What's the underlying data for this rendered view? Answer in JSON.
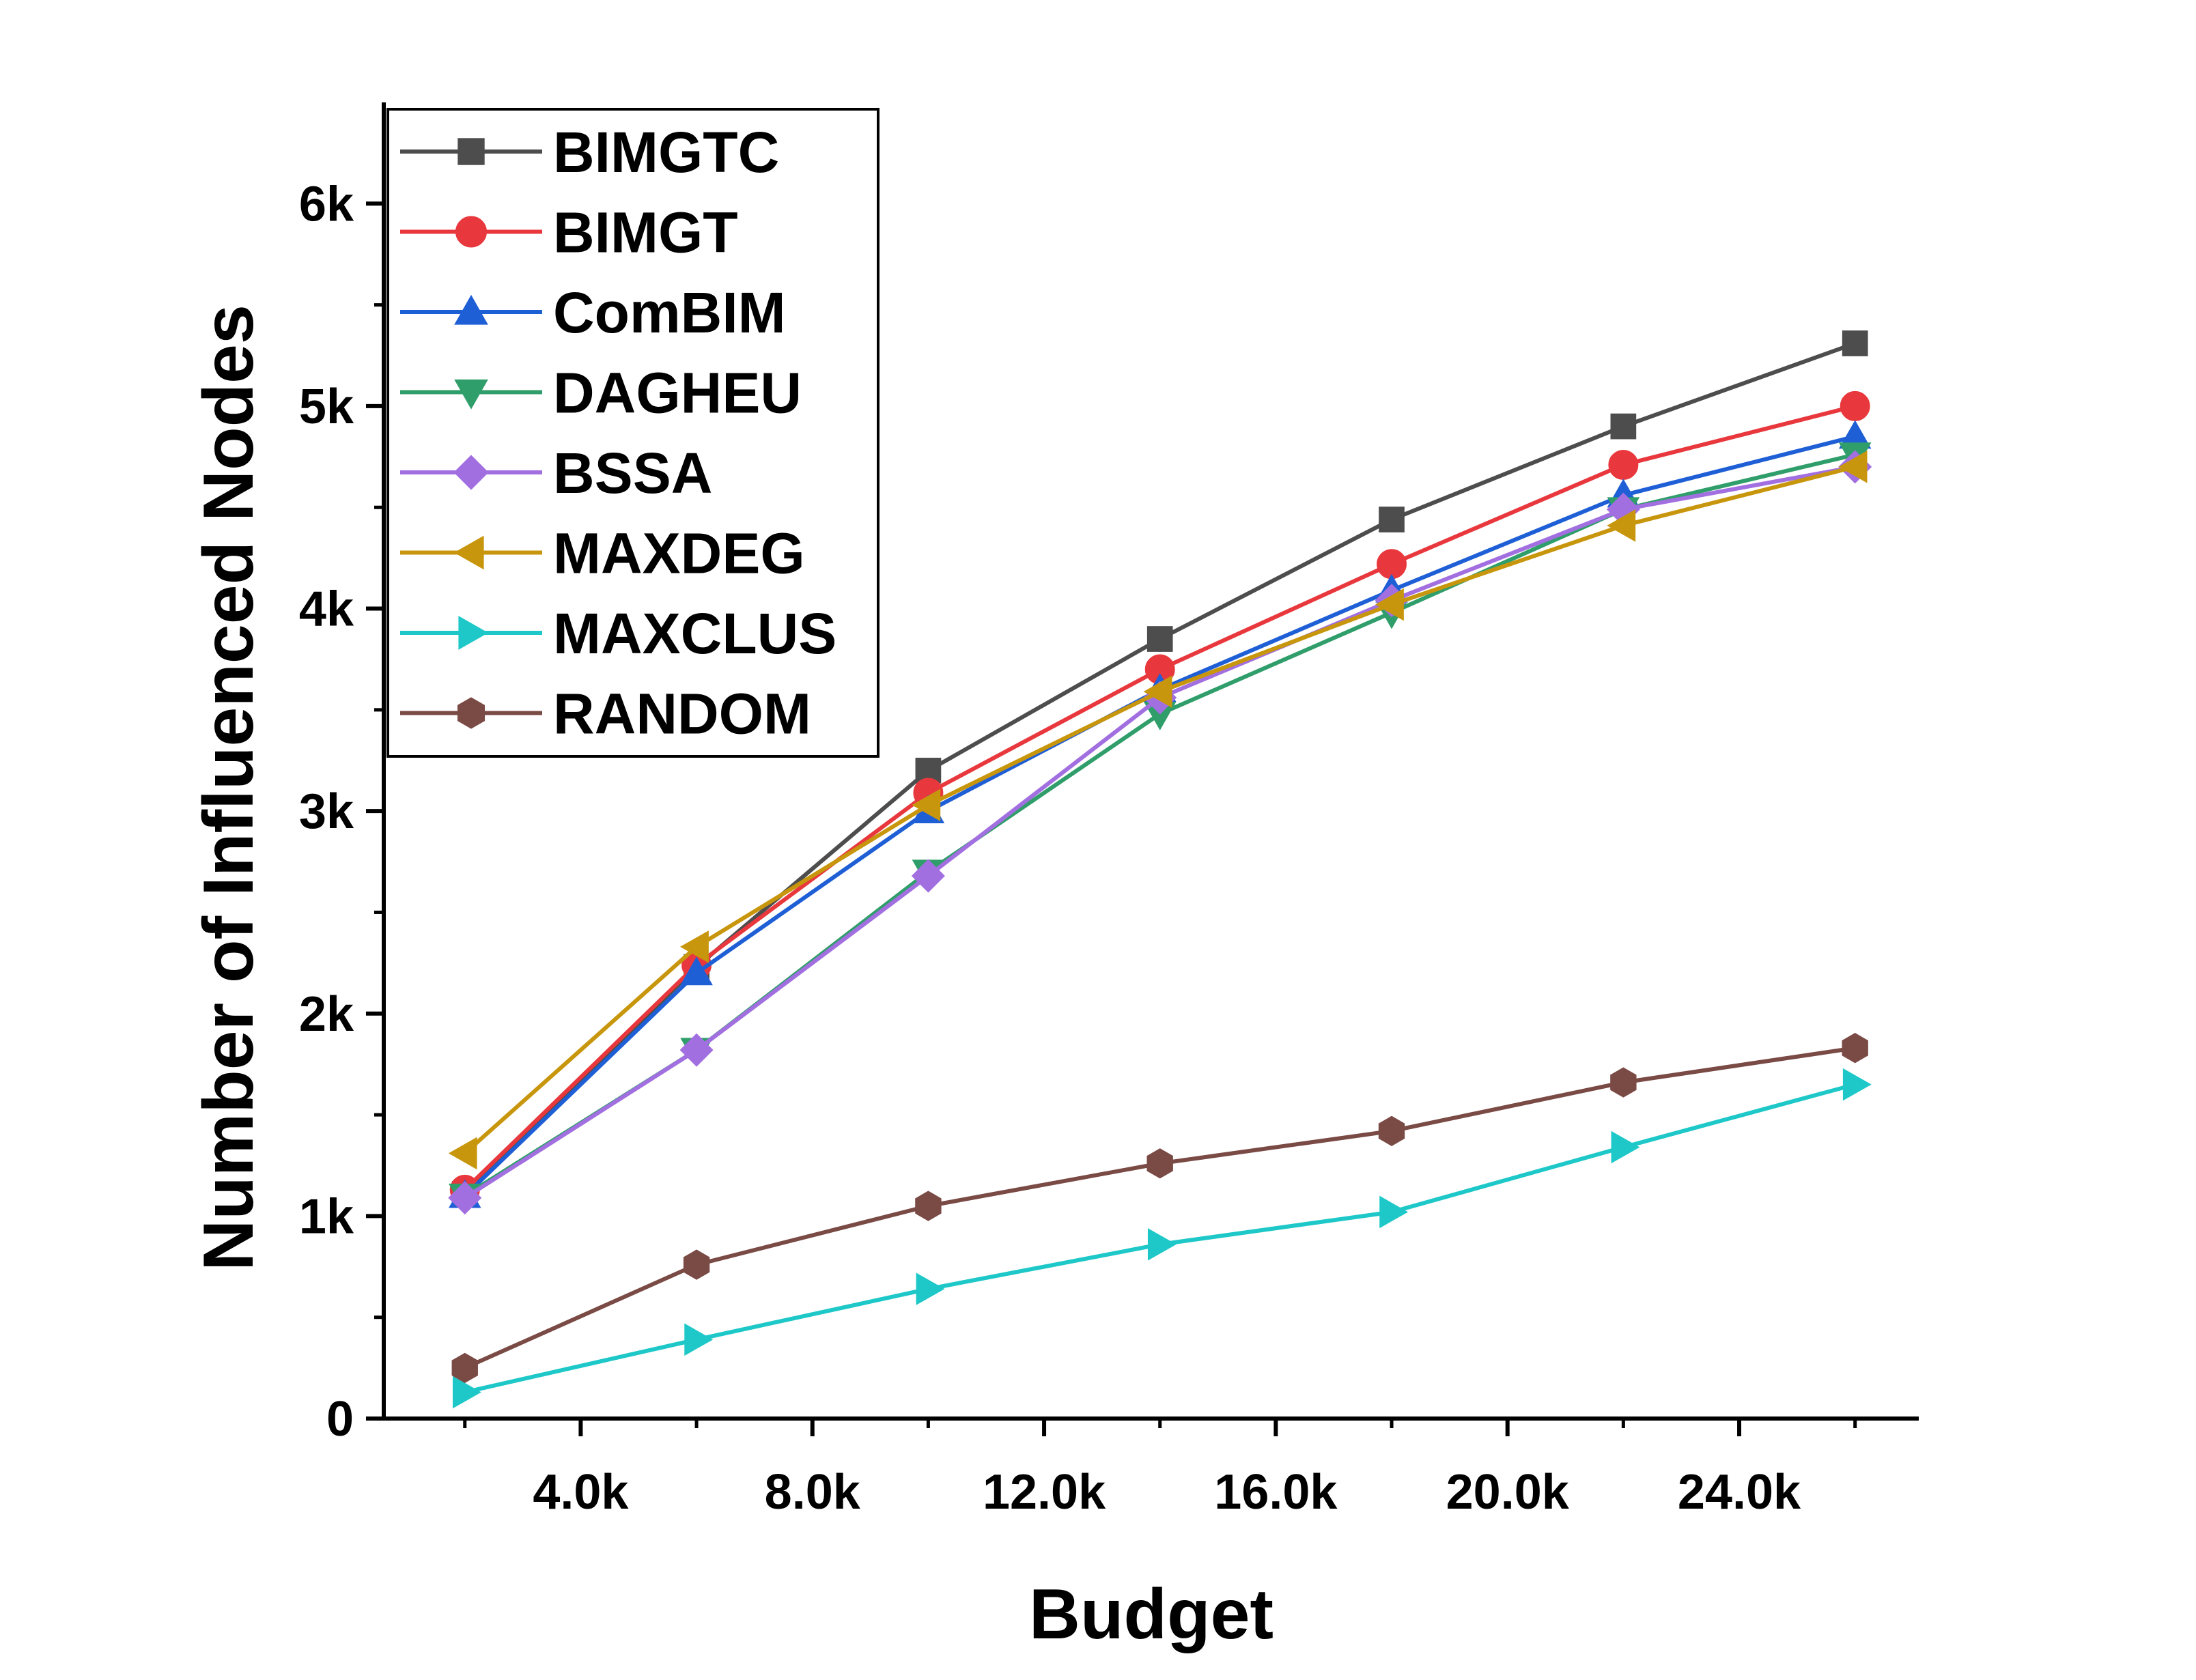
{
  "chart_data": {
    "type": "line",
    "title": "",
    "xlabel": "Budget",
    "ylabel": "Number of Influenced Nodes",
    "x": [
      2000,
      6000,
      10000,
      14000,
      18000,
      22000,
      26000
    ],
    "xlim": [
      600,
      27100
    ],
    "ylim": [
      0,
      6500
    ],
    "x_ticks": [
      4000,
      8000,
      12000,
      16000,
      20000,
      24000
    ],
    "x_tick_labels": [
      "4.0k",
      "8.0k",
      "12.0k",
      "16.0k",
      "20.0k",
      "24.0k"
    ],
    "y_ticks": [
      0,
      1000,
      2000,
      3000,
      4000,
      5000,
      6000
    ],
    "y_tick_labels": [
      "0",
      "1k",
      "2k",
      "3k",
      "4k",
      "5k",
      "6k"
    ],
    "grid": false,
    "legend_position": "top-left",
    "series": [
      {
        "name": "BIMGTC",
        "color": "#4d4d4d",
        "marker": "square",
        "values": [
          1110,
          2230,
          3200,
          3850,
          4440,
          4900,
          5310
        ]
      },
      {
        "name": "BIMGT",
        "color": "#e8383d",
        "marker": "circle",
        "values": [
          1130,
          2240,
          3090,
          3700,
          4220,
          4710,
          5000
        ]
      },
      {
        "name": "ComBIM",
        "color": "#1f5fd6",
        "marker": "triangle-up",
        "values": [
          1100,
          2200,
          3000,
          3600,
          4090,
          4560,
          4850
        ]
      },
      {
        "name": "DAGHEU",
        "color": "#2f9e6a",
        "marker": "triangle-down",
        "values": [
          1100,
          1820,
          2700,
          3480,
          3980,
          4490,
          4760
        ]
      },
      {
        "name": "BSSA",
        "color": "#a26fe0",
        "marker": "diamond",
        "values": [
          1090,
          1820,
          2680,
          3560,
          4040,
          4490,
          4700
        ]
      },
      {
        "name": "MAXDEG",
        "color": "#c8960c",
        "marker": "triangle-left",
        "values": [
          1310,
          2330,
          3030,
          3590,
          4020,
          4410,
          4700
        ]
      },
      {
        "name": "MAXCLUS",
        "color": "#1ec8c8",
        "marker": "triangle-right",
        "values": [
          130,
          390,
          640,
          860,
          1020,
          1340,
          1650
        ]
      },
      {
        "name": "RANDOM",
        "color": "#7a4a45",
        "marker": "hexagon",
        "values": [
          250,
          760,
          1050,
          1260,
          1420,
          1660,
          1830
        ]
      }
    ]
  }
}
